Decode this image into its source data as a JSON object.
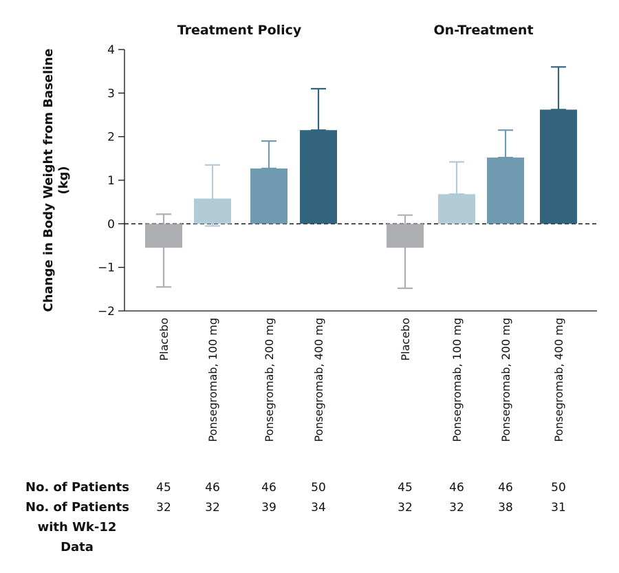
{
  "chart_data": {
    "type": "bar",
    "ylabel_line1": "Change in Body Weight from Baseline",
    "ylabel_line2": "(kg)",
    "ylim": [
      -2,
      4
    ],
    "yticks": [
      4,
      3,
      2,
      1,
      0,
      -1,
      -2
    ],
    "ytick_labels": [
      "4",
      "3",
      "2",
      "1",
      "0",
      "−1",
      "−2"
    ],
    "reference_line": 0,
    "categories": [
      "Placebo",
      "Ponsegromab, 100 mg",
      "Ponsegromab, 200 mg",
      "Ponsegromab, 400 mg"
    ],
    "colors": [
      "#aeafb3",
      "#b3cad7",
      "#6f9aaf",
      "#33647d"
    ],
    "panels": [
      {
        "title": "Treatment Policy",
        "values": [
          -0.55,
          0.58,
          1.27,
          2.15
        ],
        "error_bars": [
          [
            -1.45,
            0.22
          ],
          [
            -0.05,
            1.35
          ],
          [
            1.27,
            1.9
          ],
          [
            2.15,
            3.1
          ]
        ]
      },
      {
        "title": "On-Treatment",
        "values": [
          -0.55,
          0.68,
          1.52,
          2.62
        ],
        "error_bars": [
          [
            -1.48,
            0.2
          ],
          [
            0.68,
            1.42
          ],
          [
            1.52,
            2.15
          ],
          [
            2.62,
            3.6
          ]
        ]
      }
    ],
    "patient_rows": [
      {
        "label_lines": [
          "No. of Patients"
        ],
        "panels": [
          [
            "45",
            "46",
            "46",
            "50"
          ],
          [
            "45",
            "46",
            "46",
            "50"
          ]
        ]
      },
      {
        "label_lines": [
          "No. of Patients",
          "with Wk-12",
          "Data"
        ],
        "panels": [
          [
            "32",
            "32",
            "39",
            "34"
          ],
          [
            "32",
            "32",
            "38",
            "31"
          ]
        ]
      }
    ]
  }
}
